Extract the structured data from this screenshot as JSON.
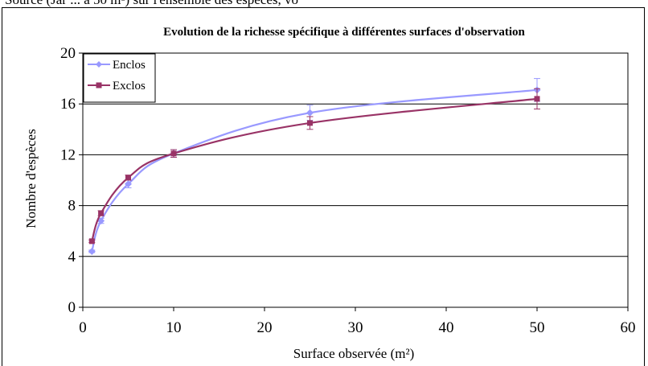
{
  "top_text": "Source (Jar ... a 50 m²) sur l'ensemble des espèces, vo",
  "chart_data": {
    "type": "line",
    "title": "Evolution de la richesse spécifique à différentes surfaces d'observation",
    "xlabel": "Surface observée (m²)",
    "ylabel": "Nombre d'espèces",
    "xlim": [
      0,
      60
    ],
    "ylim": [
      0,
      20
    ],
    "xticks": [
      0,
      10,
      20,
      30,
      40,
      50,
      60
    ],
    "yticks": [
      0,
      4,
      8,
      12,
      16,
      20
    ],
    "grid": "horizontal",
    "legend_position": "top-left",
    "series": [
      {
        "name": "Enclos",
        "color": "#9999ff",
        "marker": "diamond",
        "x": [
          1,
          2,
          5,
          10,
          25,
          50
        ],
        "y": [
          4.4,
          6.8,
          9.7,
          12.1,
          15.3,
          17.1
        ],
        "error": [
          0.1,
          0.2,
          0.3,
          0.3,
          0.6,
          0.9
        ]
      },
      {
        "name": "Exclos",
        "color": "#993366",
        "marker": "square",
        "x": [
          1,
          2,
          5,
          10,
          25,
          50
        ],
        "y": [
          5.2,
          7.4,
          10.2,
          12.1,
          14.5,
          16.4
        ],
        "error": [
          0.1,
          0.2,
          0.2,
          0.3,
          0.5,
          0.8
        ]
      }
    ]
  }
}
